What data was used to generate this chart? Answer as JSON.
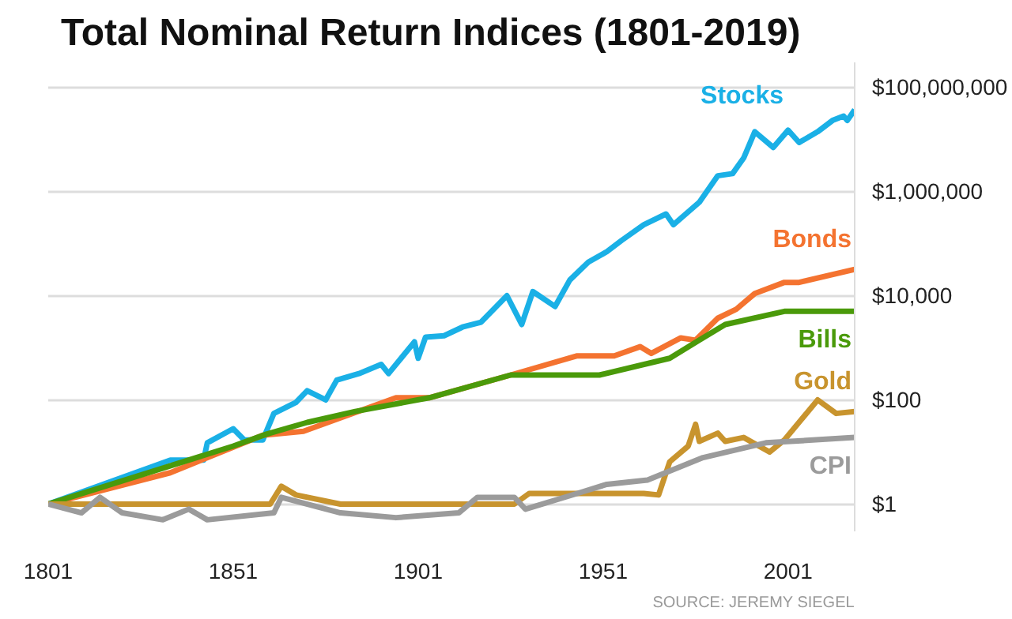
{
  "chart_data": {
    "type": "line",
    "title": "Total Nominal Return Indices (1801-2019)",
    "log": "y",
    "grid": "y",
    "xlim": [
      1801,
      2019
    ],
    "xticks": [
      1801,
      1851,
      1901,
      1951,
      2001
    ],
    "ylim": [
      0.3,
      300000000
    ],
    "yticks": [
      {
        "value": 1,
        "label": "$1"
      },
      {
        "value": 100,
        "label": "$100"
      },
      {
        "value": 10000,
        "label": "$10,000"
      },
      {
        "value": 1000000,
        "label": "$1,000,000"
      },
      {
        "value": 100000000,
        "label": "$100,000,000"
      }
    ],
    "annotations": [
      "SOURCE: JEREMY SIEGEL"
    ],
    "series": [
      {
        "name": "Stocks",
        "color": "#1ab0e6",
        "x": [
          1801,
          1834,
          1843,
          1844,
          1851,
          1854,
          1859,
          1862,
          1868,
          1871,
          1876,
          1879,
          1885,
          1891,
          1893,
          1900,
          1901,
          1903,
          1908,
          1913,
          1918,
          1925,
          1929,
          1932,
          1938,
          1942,
          1947,
          1952,
          1956,
          1962,
          1968,
          1970,
          1977,
          1982,
          1986,
          1989,
          1992,
          1997,
          2001,
          2004,
          2009,
          2013,
          2016,
          2017,
          2019
        ],
        "values": [
          1,
          7,
          7,
          15,
          28,
          17,
          17,
          55,
          90,
          150,
          100,
          240,
          320,
          480,
          320,
          1300,
          630,
          1600,
          1700,
          2500,
          3100,
          10000,
          2800,
          12000,
          6200,
          20000,
          44000,
          70000,
          115000,
          230000,
          370000,
          230000,
          620000,
          2000000,
          2200000,
          4400000,
          14000000,
          7000000,
          15000000,
          8700000,
          14000000,
          23000000,
          28000000,
          23000000,
          37000000
        ]
      },
      {
        "name": "Bonds",
        "color": "#f47330",
        "x": [
          1801,
          1834,
          1859,
          1870,
          1895,
          1904,
          1926,
          1944,
          1954,
          1961,
          1964,
          1972,
          1976,
          1982,
          1987,
          1992,
          2000,
          2004,
          2019
        ],
        "values": [
          1,
          4,
          21,
          25,
          110,
          110,
          300,
          700,
          700,
          1050,
          780,
          1550,
          1400,
          3700,
          5500,
          11000,
          18000,
          18000,
          32000
        ]
      },
      {
        "name": "Bills",
        "color": "#4a9a0a",
        "x": [
          1801,
          1851,
          1860,
          1871,
          1884,
          1904,
          1926,
          1950,
          1969,
          1977,
          1984,
          2000,
          2019
        ],
        "values": [
          1,
          13,
          22,
          37,
          60,
          110,
          300,
          300,
          630,
          1400,
          2800,
          5000,
          5000
        ]
      },
      {
        "name": "Gold",
        "color": "#c8942e",
        "x": [
          1801,
          1861,
          1864,
          1868,
          1880,
          1911,
          1927,
          1931,
          1962,
          1966,
          1969,
          1974,
          1976,
          1977,
          1982,
          1984,
          1989,
          1996,
          2000,
          2009,
          2014,
          2019
        ],
        "values": [
          1,
          1,
          2.2,
          1.5,
          1,
          1,
          1,
          1.6,
          1.6,
          1.5,
          6.5,
          13,
          34,
          16,
          23,
          16,
          19,
          10,
          17,
          100,
          55,
          60
        ]
      },
      {
        "name": "CPI",
        "color": "#9b9b9b",
        "x": [
          1801,
          1810,
          1815,
          1821,
          1832,
          1839,
          1844,
          1862,
          1864,
          1880,
          1895,
          1912,
          1917,
          1927,
          1930,
          1944,
          1952,
          1963,
          1978,
          1995,
          2019
        ],
        "values": [
          1,
          0.68,
          1.35,
          0.68,
          0.5,
          0.8,
          0.5,
          0.68,
          1.35,
          0.68,
          0.55,
          0.68,
          1.35,
          1.35,
          0.8,
          1.6,
          2.4,
          2.9,
          7.8,
          15,
          19
        ]
      }
    ]
  }
}
